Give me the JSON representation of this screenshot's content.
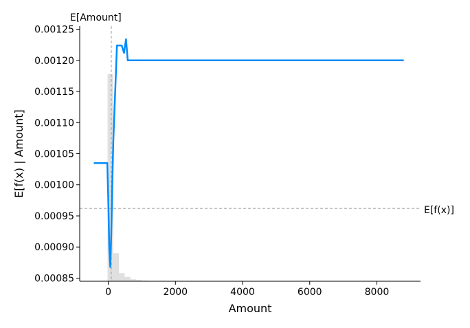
{
  "chart_data": {
    "type": "line",
    "xlabel": "Amount",
    "ylabel": "E[f(x) | Amount]",
    "xlim": [
      -850,
      9300
    ],
    "ylim": [
      0.000845,
      0.001255
    ],
    "x_ticks": [
      0,
      2000,
      4000,
      6000,
      8000
    ],
    "y_ticks": [
      0.00085,
      0.0009,
      0.00095,
      0.001,
      0.00105,
      0.0011,
      0.00115,
      0.0012,
      0.00125
    ],
    "x_tick_labels": [
      "0",
      "2000",
      "4000",
      "6000",
      "8000"
    ],
    "y_tick_labels": [
      "0.00085",
      "0.00090",
      "0.00095",
      "0.00100",
      "0.00105",
      "0.00110",
      "0.00115",
      "0.00120",
      "0.00125"
    ],
    "expected_x": {
      "label": "E[Amount]",
      "value": 90
    },
    "expected_y": {
      "label": "E[f(x)]",
      "value": 0.000962
    },
    "line_color": "#008bfb",
    "histogram_color": "#cccccc",
    "series": [
      {
        "x": [
          -430,
          -30,
          0,
          30,
          60,
          90,
          120,
          150,
          200,
          260,
          320,
          400,
          470,
          530,
          580,
          650,
          800,
          1200,
          2000,
          3000,
          4000,
          5000,
          6000,
          7000,
          8000,
          8800
        ],
        "y": [
          0.001035,
          0.001035,
          0.00098,
          0.0009,
          0.000868,
          0.00092,
          0.001,
          0.00107,
          0.00114,
          0.001224,
          0.001224,
          0.001224,
          0.001212,
          0.001234,
          0.0012,
          0.0012,
          0.0012,
          0.0012,
          0.0012,
          0.0012,
          0.0012,
          0.0012,
          0.0012,
          0.0012,
          0.0012,
          0.0012
        ]
      }
    ],
    "histogram": {
      "bin_edges": [
        -20,
        150,
        320,
        490,
        660,
        830,
        1000,
        1170
      ],
      "heights": [
        0.001178,
        0.00089,
        0.000858,
        0.000852,
        0.000848,
        0.000847,
        0.000846
      ]
    }
  }
}
